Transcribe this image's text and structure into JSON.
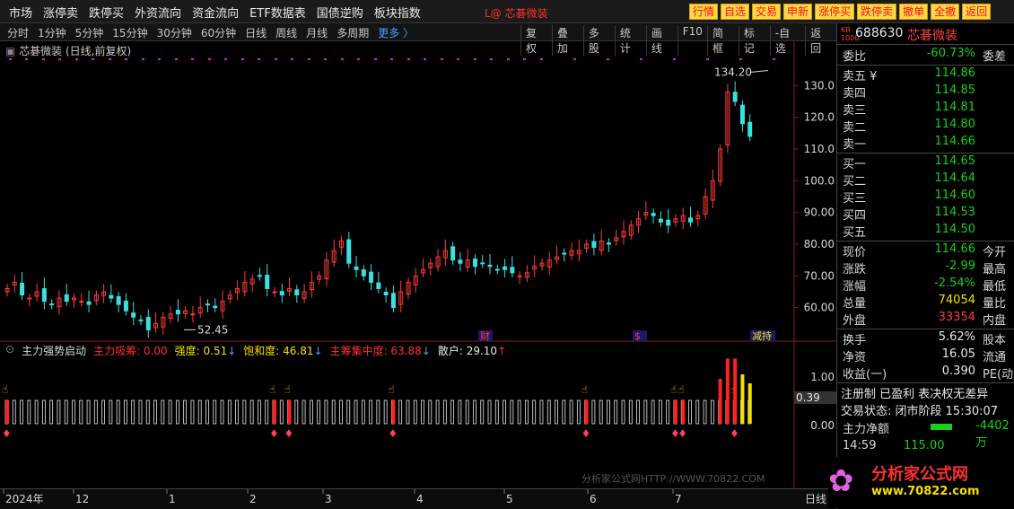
{
  "menu": [
    "市场",
    "涨停卖",
    "跌停买",
    "外资流向",
    "资金流向",
    "ETF数据表",
    "国债逆购",
    "板块指数"
  ],
  "top_tag": "L@ 芯碁微装",
  "top_buttons": [
    "行情",
    "自选",
    "交易",
    "申新",
    "涨停买",
    "跌停卖",
    "撤单",
    "全撤",
    "返回"
  ],
  "periods": [
    "分时",
    "1分钟",
    "5分钟",
    "15分钟",
    "30分钟",
    "60分钟",
    "日线",
    "周线",
    "月线",
    "多周期"
  ],
  "periods_more": "更多 〉",
  "tools": [
    "复权",
    "叠加",
    "多股",
    "统计",
    "画线",
    "F10",
    "简框",
    "标记",
    "-自选",
    "返回"
  ],
  "chart_title": "芯碁微装 (日线,前复权)",
  "y_ticks": [
    "130.0",
    "120.0",
    "110.0",
    "100.0",
    "90.00",
    "80.00",
    "70.00",
    "60.00"
  ],
  "annot_high": "134.20",
  "annot_low": "52.45",
  "event_tags": [
    "财",
    "$",
    "减持"
  ],
  "indicator": {
    "name": "主力强势启动",
    "items": [
      {
        "label": "主力吸筹:",
        "value": "0.00",
        "color": "#ff3030",
        "arrow": ""
      },
      {
        "label": "强度:",
        "value": "0.51",
        "color": "#f5e000",
        "arrow": "↓"
      },
      {
        "label": "饱和度:",
        "value": "46.81",
        "color": "#f5e000",
        "arrow": "↓"
      },
      {
        "label": "主筹集中度:",
        "value": "63.88",
        "color": "#ff3030",
        "arrow": "↓"
      },
      {
        "label": "散户:",
        "value": "29.10",
        "color": "#e8e8e8",
        "arrow": "↑"
      }
    ],
    "y_ticks": [
      "1.00",
      "0.00"
    ],
    "current_badge": "0.39"
  },
  "watermark": "分析家公式网HTTP://WWW.70822.COM",
  "date_labels": [
    "2024年",
    "12",
    "1",
    "2",
    "3",
    "4",
    "5",
    "6",
    "7"
  ],
  "date_right": "日线",
  "quote": {
    "badge": "KR 1000",
    "code": "688630",
    "name": "芯碁微装",
    "webi_label": "委比",
    "webi_value": "-60.73%",
    "weicha_label": "委差",
    "sells": [
      {
        "label": "卖五 ¥",
        "price": "114.86"
      },
      {
        "label": "卖四",
        "price": "114.85"
      },
      {
        "label": "卖三",
        "price": "114.81"
      },
      {
        "label": "卖二",
        "price": "114.80"
      },
      {
        "label": "卖一",
        "price": "114.66"
      }
    ],
    "buys": [
      {
        "label": "买一",
        "price": "114.65"
      },
      {
        "label": "买二",
        "price": "114.64"
      },
      {
        "label": "买三",
        "price": "114.60"
      },
      {
        "label": "买四",
        "price": "114.53"
      },
      {
        "label": "买五",
        "price": "114.50"
      }
    ],
    "stats": [
      {
        "label": "现价",
        "value": "114.66",
        "right": "今开",
        "color": "green"
      },
      {
        "label": "涨跌",
        "value": "-2.99",
        "right": "最高",
        "color": "green"
      },
      {
        "label": "涨幅",
        "value": "-2.54%",
        "right": "最低",
        "color": "green"
      },
      {
        "label": "总量",
        "value": "74054",
        "right": "量比",
        "color": "yellow"
      },
      {
        "label": "外盘",
        "value": "33354",
        "right": "内盘",
        "color": "red"
      }
    ],
    "stats2": [
      {
        "label": "换手",
        "value": "5.62%",
        "right": "股本"
      },
      {
        "label": "净资",
        "value": "16.05",
        "right": "流通"
      },
      {
        "label": "收益(一)",
        "value": "0.390",
        "right": "PE(动)"
      }
    ],
    "reg_line": "注册制 已盈利 表决权无差异",
    "trade_status": "交易状态: 闭市阶段 15:30:07",
    "netflow_label": "主力净额",
    "netflow_value": "-4402万",
    "tick_time": "14:59",
    "tick_price": "115.00",
    "site_name": "分析家公式网",
    "site_url": "www.70822.com"
  },
  "chart_data": {
    "type": "candlestick",
    "y_range": [
      50,
      140
    ],
    "series": [
      {
        "name": "price_path",
        "values": [
          66,
          68,
          64,
          63,
          65,
          62,
          61,
          63,
          62,
          63,
          62,
          61,
          64,
          65,
          63,
          61,
          59,
          57,
          56,
          53,
          55,
          57,
          58,
          58,
          59,
          58,
          60,
          61,
          60,
          62,
          64,
          66,
          68,
          69,
          70,
          66,
          65,
          64,
          66,
          64,
          65,
          68,
          70,
          75,
          78,
          81,
          74,
          72,
          70,
          68,
          66,
          64,
          60,
          65,
          68,
          70,
          72,
          74,
          76,
          78,
          75,
          74,
          75,
          73,
          74,
          73,
          72,
          72,
          71,
          70,
          71,
          73,
          74,
          75,
          76,
          77,
          78,
          78,
          80,
          79,
          81,
          80,
          82,
          84,
          86,
          88,
          90,
          89,
          87,
          86,
          88,
          89,
          87,
          89,
          95,
          100,
          110,
          128,
          125,
          118,
          114
        ]
      }
    ],
    "special_highs": {
      "134.20": "peak",
      "52.45": "trough"
    },
    "volume_levels": {
      "recent_bars": [
        1.0,
        1.45,
        1.45,
        1.1,
        0.9
      ],
      "typical": 0.5
    }
  }
}
